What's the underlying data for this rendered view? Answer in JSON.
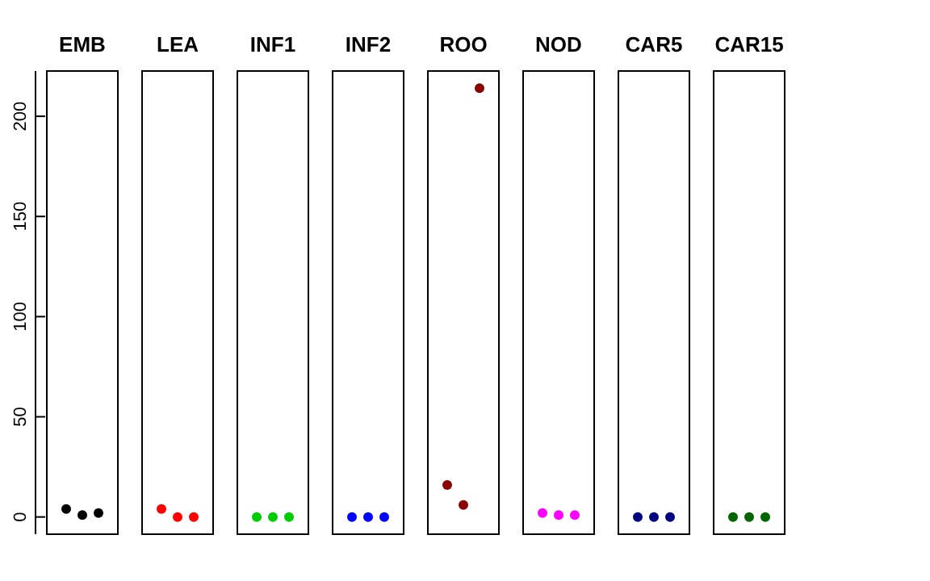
{
  "chart_data": {
    "type": "scatter",
    "categories": [
      "EMB",
      "LEA",
      "INF1",
      "INF2",
      "ROO",
      "NOD",
      "CAR5",
      "CAR15"
    ],
    "series": [
      {
        "colors": [
          "#000000",
          "#ff0000",
          "#00cd00",
          "#0000ff",
          "#8b0000",
          "#ff00ff",
          "#000080",
          "#006400"
        ],
        "values": [
          4,
          4,
          0,
          0,
          16,
          2,
          0,
          0
        ]
      },
      {
        "colors": [
          "#000000",
          "#ff0000",
          "#00cd00",
          "#0000ff",
          "#8b0000",
          "#ff00ff",
          "#000080",
          "#006400"
        ],
        "values": [
          1,
          0,
          0,
          0,
          6,
          1,
          0,
          0
        ]
      },
      {
        "colors": [
          "#000000",
          "#ff0000",
          "#00cd00",
          "#0000ff",
          "#8b0000",
          "#ff00ff",
          "#000080",
          "#006400"
        ],
        "values": [
          2,
          0,
          0,
          0,
          214,
          1,
          0,
          0
        ]
      }
    ],
    "ylim": [
      -8.6,
      222.6
    ],
    "yticks": [
      0,
      50,
      100,
      150,
      200
    ],
    "marker": "circle",
    "grid": false
  }
}
